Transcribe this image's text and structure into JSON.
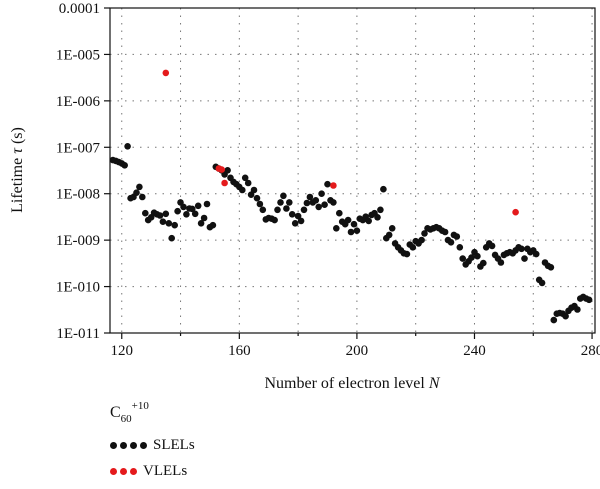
{
  "chart_data": {
    "type": "scatter",
    "title": "",
    "xlabel": "Number of electron level",
    "xlabel_var": "N",
    "ylabel": "Lifetime",
    "ylabel_var": "τ",
    "ylabel_unit": "(s)",
    "xlim": [
      116,
      281
    ],
    "ylim_log10": [
      -11,
      -4
    ],
    "y_scale": "log",
    "x_ticks": [
      120,
      160,
      200,
      240,
      280
    ],
    "y_ticks": [
      "1E-011",
      "1E-010",
      "1E-009",
      "1E-008",
      "1E-007",
      "1E-006",
      "1E-005",
      "0.0001"
    ],
    "grid": "dotted",
    "legend": {
      "placement": "below",
      "title_base": "C",
      "title_sub": "60",
      "title_sup": "+10"
    },
    "series": [
      {
        "name": "SLELs",
        "color": "#111111",
        "points": [
          [
            117,
            5.3e-08
          ],
          [
            118,
            5.1e-08
          ],
          [
            119,
            4.8e-08
          ],
          [
            120,
            4.5e-08
          ],
          [
            121,
            4.1e-08
          ],
          [
            122,
            1.05e-07
          ],
          [
            123,
            8e-09
          ],
          [
            124,
            8.5e-09
          ],
          [
            125,
            1.05e-08
          ],
          [
            126,
            1.4e-08
          ],
          [
            127,
            8.5e-09
          ],
          [
            128,
            3.8e-09
          ],
          [
            129,
            2.7e-09
          ],
          [
            130,
            3.1e-09
          ],
          [
            131,
            3.9e-09
          ],
          [
            132,
            3.6e-09
          ],
          [
            133,
            3.4e-09
          ],
          [
            134,
            2.5e-09
          ],
          [
            135,
            3.7e-09
          ],
          [
            136,
            2.3e-09
          ],
          [
            137,
            1.1e-09
          ],
          [
            138,
            2.1e-09
          ],
          [
            139,
            4.2e-09
          ],
          [
            140,
            6.5e-09
          ],
          [
            141,
            5.2e-09
          ],
          [
            142,
            3.6e-09
          ],
          [
            143,
            4.8e-09
          ],
          [
            144,
            4.7e-09
          ],
          [
            145,
            3.7e-09
          ],
          [
            146,
            5.5e-09
          ],
          [
            147,
            2.3e-09
          ],
          [
            148,
            3e-09
          ],
          [
            149,
            6e-09
          ],
          [
            150,
            1.9e-09
          ],
          [
            151,
            2.1e-09
          ],
          [
            152,
            3.8e-08
          ],
          [
            153,
            3.5e-08
          ],
          [
            154,
            3.2e-08
          ],
          [
            155,
            2.6e-08
          ],
          [
            156,
            3.2e-08
          ],
          [
            157,
            2.2e-08
          ],
          [
            158,
            1.8e-08
          ],
          [
            159,
            1.6e-08
          ],
          [
            160,
            1.4e-08
          ],
          [
            161,
            1.2e-08
          ],
          [
            162,
            2.2e-08
          ],
          [
            163,
            1.7e-08
          ],
          [
            164,
            9.5e-09
          ],
          [
            165,
            1.2e-08
          ],
          [
            166,
            8e-09
          ],
          [
            167,
            6e-09
          ],
          [
            168,
            4.5e-09
          ],
          [
            169,
            2.8e-09
          ],
          [
            170,
            3e-09
          ],
          [
            171,
            2.9e-09
          ],
          [
            172,
            2.7e-09
          ],
          [
            173,
            4.5e-09
          ],
          [
            174,
            6.5e-09
          ],
          [
            175,
            9e-09
          ],
          [
            176,
            4.8e-09
          ],
          [
            177,
            6.5e-09
          ],
          [
            178,
            3.6e-09
          ],
          [
            179,
            2.3e-09
          ],
          [
            180,
            3.3e-09
          ],
          [
            181,
            2.6e-09
          ],
          [
            182,
            4.5e-09
          ],
          [
            183,
            6.3e-09
          ],
          [
            184,
            8.5e-09
          ],
          [
            185,
            6.5e-09
          ],
          [
            186,
            7.2e-09
          ],
          [
            187,
            5.2e-09
          ],
          [
            188,
            1e-08
          ],
          [
            189,
            5.8e-09
          ],
          [
            190,
            1.6e-08
          ],
          [
            191,
            7.2e-09
          ],
          [
            192,
            6.5e-09
          ],
          [
            193,
            1.8e-09
          ],
          [
            194,
            3.8e-09
          ],
          [
            195,
            2.5e-09
          ],
          [
            196,
            2.2e-09
          ],
          [
            197,
            2.7e-09
          ],
          [
            198,
            1.5e-09
          ],
          [
            199,
            2.2e-09
          ],
          [
            200,
            1.6e-09
          ],
          [
            201,
            2.9e-09
          ],
          [
            202,
            2.7e-09
          ],
          [
            203,
            3.2e-09
          ],
          [
            204,
            2.6e-09
          ],
          [
            205,
            3.5e-09
          ],
          [
            206,
            3.8e-09
          ],
          [
            207,
            3.1e-09
          ],
          [
            208,
            4.5e-09
          ],
          [
            209,
            1.25e-08
          ],
          [
            210,
            1.1e-09
          ],
          [
            211,
            1.3e-09
          ],
          [
            212,
            1.8e-09
          ],
          [
            213,
            8.5e-10
          ],
          [
            214,
            7e-10
          ],
          [
            215,
            6e-10
          ],
          [
            216,
            5.2e-10
          ],
          [
            217,
            5e-10
          ],
          [
            218,
            8e-10
          ],
          [
            219,
            7e-10
          ],
          [
            220,
            9.5e-10
          ],
          [
            221,
            8.5e-10
          ],
          [
            222,
            1e-09
          ],
          [
            223,
            1.4e-09
          ],
          [
            224,
            1.8e-09
          ],
          [
            225,
            1.7e-09
          ],
          [
            226,
            1.8e-09
          ],
          [
            227,
            1.9e-09
          ],
          [
            228,
            1.8e-09
          ],
          [
            229,
            1.6e-09
          ],
          [
            230,
            1.5e-09
          ],
          [
            231,
            1e-09
          ],
          [
            232,
            9e-10
          ],
          [
            233,
            1.3e-09
          ],
          [
            234,
            1.2e-09
          ],
          [
            235,
            7e-10
          ],
          [
            236,
            4e-10
          ],
          [
            237,
            3e-10
          ],
          [
            238,
            3.5e-10
          ],
          [
            239,
            4.2e-10
          ],
          [
            240,
            5.5e-10
          ],
          [
            241,
            4.5e-10
          ],
          [
            242,
            2.7e-10
          ],
          [
            243,
            3.2e-10
          ],
          [
            244,
            7e-10
          ],
          [
            245,
            8.5e-10
          ],
          [
            246,
            7.5e-10
          ],
          [
            247,
            4.8e-10
          ],
          [
            248,
            4e-10
          ],
          [
            249,
            3.3e-10
          ],
          [
            250,
            4.8e-10
          ],
          [
            251,
            5.2e-10
          ],
          [
            252,
            5.5e-10
          ],
          [
            253,
            5.2e-10
          ],
          [
            254,
            6e-10
          ],
          [
            255,
            7e-10
          ],
          [
            256,
            6.5e-10
          ],
          [
            257,
            4e-10
          ],
          [
            258,
            6.5e-10
          ],
          [
            259,
            5.5e-10
          ],
          [
            260,
            6e-10
          ],
          [
            261,
            5e-10
          ],
          [
            262,
            1.4e-10
          ],
          [
            263,
            1.2e-10
          ],
          [
            264,
            3.3e-10
          ],
          [
            265,
            2.8e-10
          ],
          [
            266,
            2.6e-10
          ],
          [
            267,
            1.9e-11
          ],
          [
            268,
            2.6e-11
          ],
          [
            269,
            2.7e-11
          ],
          [
            270,
            2.6e-11
          ],
          [
            271,
            2.3e-11
          ],
          [
            272,
            3e-11
          ],
          [
            273,
            3.5e-11
          ],
          [
            274,
            3.8e-11
          ],
          [
            275,
            3.2e-11
          ],
          [
            276,
            5.5e-11
          ],
          [
            277,
            6e-11
          ],
          [
            278,
            5.5e-11
          ],
          [
            279,
            5.2e-11
          ]
        ]
      },
      {
        "name": "VLELs",
        "color": "#e41a1c",
        "points": [
          [
            135,
            4e-06
          ],
          [
            153,
            3.5e-08
          ],
          [
            154,
            3.3e-08
          ],
          [
            155,
            1.7e-08
          ],
          [
            192,
            1.5e-08
          ],
          [
            254,
            4e-09
          ]
        ]
      }
    ]
  }
}
